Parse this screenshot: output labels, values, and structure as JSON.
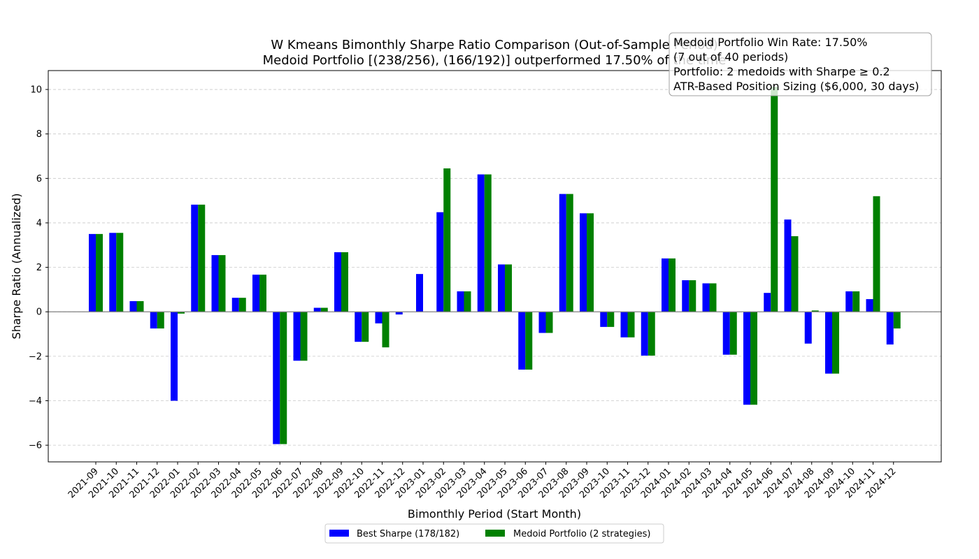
{
  "chart_data": {
    "type": "bar",
    "title": "W Kmeans Bimonthly Sharpe Ratio Comparison (Out-of-Sample Period)",
    "subtitle": "Medoid Portfolio [(238/256), (166/192)] outperformed 17.50% of the time",
    "xlabel": "Bimonthly Period (Start Month)",
    "ylabel": "Sharpe Ratio (Annualized)",
    "ylim": [
      -6.75,
      10.85
    ],
    "yticks": [
      -6,
      -4,
      -2,
      0,
      2,
      4,
      6,
      8,
      10
    ],
    "ytick_labels": [
      "−6",
      "−4",
      "−2",
      "0",
      "2",
      "4",
      "6",
      "8",
      "10"
    ],
    "grid": true,
    "legend_position": "bottom-center",
    "categories": [
      "2021-09",
      "2021-10",
      "2021-11",
      "2021-12",
      "2022-01",
      "2022-02",
      "2022-03",
      "2022-04",
      "2022-05",
      "2022-06",
      "2022-07",
      "2022-08",
      "2022-09",
      "2022-10",
      "2022-11",
      "2022-12",
      "2023-01",
      "2023-02",
      "2023-03",
      "2023-04",
      "2023-05",
      "2023-06",
      "2023-07",
      "2023-08",
      "2023-09",
      "2023-10",
      "2023-11",
      "2023-12",
      "2024-01",
      "2024-02",
      "2024-03",
      "2024-04",
      "2024-05",
      "2024-06",
      "2024-07",
      "2024-08",
      "2024-09",
      "2024-10",
      "2024-11",
      "2024-12"
    ],
    "series": [
      {
        "name": "Best Sharpe (178/182)",
        "color": "#0000ff",
        "values": [
          3.5,
          3.55,
          0.48,
          -0.75,
          -4.0,
          4.82,
          2.55,
          0.63,
          1.67,
          -5.95,
          -2.2,
          0.18,
          2.68,
          -1.35,
          -0.52,
          -0.12,
          1.7,
          4.48,
          0.92,
          6.18,
          2.13,
          -2.6,
          -0.95,
          5.3,
          4.43,
          -0.68,
          -1.15,
          -1.97,
          2.4,
          1.42,
          1.28,
          -1.93,
          -4.18,
          0.85,
          4.15,
          -1.43,
          -2.78,
          0.92,
          0.57,
          -1.47
        ]
      },
      {
        "name": "Medoid Portfolio (2 strategies)",
        "color": "#008000",
        "values": [
          3.5,
          3.55,
          0.48,
          -0.75,
          -0.08,
          4.82,
          2.55,
          0.63,
          1.67,
          -5.95,
          -2.2,
          0.18,
          2.68,
          -1.35,
          -1.6,
          0.0,
          0.0,
          6.45,
          0.92,
          6.18,
          2.13,
          -2.6,
          -0.95,
          5.3,
          4.43,
          -0.68,
          -1.15,
          -1.97,
          2.4,
          1.42,
          1.28,
          -1.93,
          -4.18,
          10.12,
          3.4,
          0.06,
          -2.78,
          0.92,
          5.2,
          -0.75
        ]
      }
    ],
    "annotation": [
      "Medoid Portfolio Win Rate: 17.50%",
      "(7 out of 40 periods)",
      "Portfolio: 2 medoids with Sharpe ≥ 0.2",
      "ATR-Based Position Sizing ($6,000, 30 days)"
    ]
  }
}
